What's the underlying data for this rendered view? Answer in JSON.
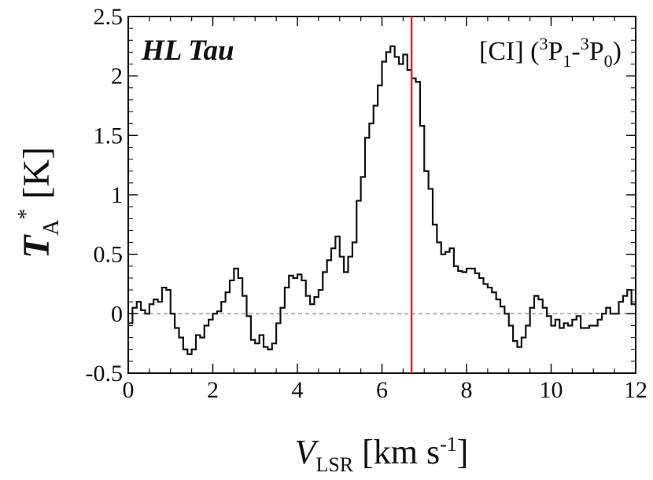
{
  "chart_data": {
    "type": "line",
    "source_label": "HL Tau",
    "line_label": {
      "prefix": "[CI] (",
      "sup1": "3",
      "p1": "P",
      "sub1": "1",
      "dash": "-",
      "sup2": "3",
      "p2": "P",
      "sub2": "0",
      "suffix": ")"
    },
    "xlabel": {
      "main": "V",
      "sub": "LSR",
      "unit": " [km s",
      "unit_sup": "-1",
      "unit_end": "]"
    },
    "ylabel": {
      "main": "T",
      "sub": "A",
      "sup": "*",
      "unit": " [K]"
    },
    "xlim": [
      0,
      12
    ],
    "ylim": [
      -0.5,
      2.5
    ],
    "x_ticks": [
      0,
      2,
      4,
      6,
      8,
      10,
      12
    ],
    "x_tick_labels": [
      "0",
      "2",
      "4",
      "6",
      "8",
      "10",
      "12"
    ],
    "y_ticks": [
      -0.5,
      0,
      0.5,
      1,
      1.5,
      2,
      2.5
    ],
    "y_tick_labels": [
      "-0.5",
      "0",
      "0.5",
      "1",
      "1.5",
      "2",
      "2.5"
    ],
    "zero_line": {
      "y": 0,
      "color": "#9aa8a8",
      "style": "dashed"
    },
    "systemic_velocity_line": {
      "x": 6.7,
      "color": "#e8262b"
    },
    "spectrum_color": "#111111",
    "series": [
      {
        "channel_width": 0.1,
        "x": [
          0.0,
          0.1,
          0.2,
          0.3,
          0.4,
          0.5,
          0.6,
          0.7,
          0.8,
          0.9,
          1.0,
          1.1,
          1.2,
          1.3,
          1.4,
          1.5,
          1.6,
          1.7,
          1.8,
          1.9,
          2.0,
          2.1,
          2.2,
          2.3,
          2.4,
          2.5,
          2.6,
          2.7,
          2.8,
          2.9,
          3.0,
          3.1,
          3.2,
          3.3,
          3.4,
          3.5,
          3.6,
          3.7,
          3.8,
          3.9,
          4.0,
          4.1,
          4.2,
          4.3,
          4.4,
          4.5,
          4.6,
          4.7,
          4.8,
          4.9,
          5.0,
          5.1,
          5.2,
          5.3,
          5.4,
          5.5,
          5.6,
          5.7,
          5.8,
          5.9,
          6.0,
          6.1,
          6.2,
          6.3,
          6.4,
          6.5,
          6.6,
          6.7,
          6.8,
          6.9,
          7.0,
          7.1,
          7.2,
          7.3,
          7.4,
          7.5,
          7.6,
          7.7,
          7.8,
          7.9,
          8.0,
          8.1,
          8.2,
          8.3,
          8.4,
          8.5,
          8.6,
          8.7,
          8.8,
          8.9,
          9.0,
          9.1,
          9.2,
          9.3,
          9.4,
          9.5,
          9.6,
          9.7,
          9.8,
          9.9,
          10.0,
          10.1,
          10.2,
          10.3,
          10.4,
          10.5,
          10.6,
          10.7,
          10.8,
          10.9,
          11.0,
          11.1,
          11.2,
          11.3,
          11.4,
          11.5,
          11.6,
          11.7,
          11.8,
          11.9
        ],
        "values": [
          -0.08,
          0.05,
          0.1,
          0.03,
          0.0,
          0.08,
          0.12,
          0.1,
          0.22,
          0.2,
          0.0,
          -0.12,
          -0.2,
          -0.3,
          -0.34,
          -0.3,
          -0.18,
          -0.2,
          -0.1,
          -0.05,
          0.0,
          0.02,
          0.1,
          0.18,
          0.28,
          0.38,
          0.3,
          0.15,
          -0.02,
          -0.22,
          -0.25,
          -0.18,
          -0.28,
          -0.3,
          -0.25,
          -0.08,
          0.05,
          0.22,
          0.32,
          0.3,
          0.33,
          0.28,
          0.15,
          0.08,
          0.14,
          0.2,
          0.35,
          0.45,
          0.55,
          0.65,
          0.48,
          0.35,
          0.48,
          0.6,
          0.95,
          1.15,
          1.48,
          1.6,
          1.75,
          1.92,
          2.12,
          2.2,
          2.25,
          2.16,
          2.1,
          2.18,
          2.05,
          1.98,
          1.95,
          1.58,
          1.2,
          1.05,
          0.75,
          0.6,
          0.5,
          0.52,
          0.55,
          0.4,
          0.36,
          0.35,
          0.38,
          0.38,
          0.34,
          0.3,
          0.25,
          0.22,
          0.18,
          0.12,
          0.06,
          0.0,
          -0.1,
          -0.23,
          -0.28,
          -0.2,
          -0.1,
          0.05,
          0.15,
          0.12,
          0.05,
          -0.02,
          -0.1,
          -0.05,
          -0.12,
          -0.08,
          -0.1,
          -0.05,
          -0.02,
          -0.12,
          -0.12,
          -0.1,
          -0.1,
          -0.05,
          0.0,
          0.05,
          0.0,
          0.0,
          0.1,
          0.15,
          0.2,
          0.08
        ]
      }
    ]
  }
}
